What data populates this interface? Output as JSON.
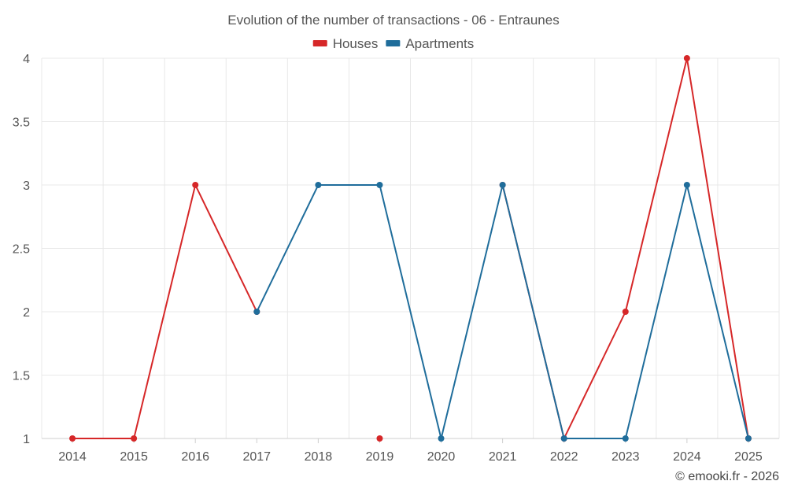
{
  "chart_data": {
    "type": "line",
    "title": "Evolution of the number of transactions - 06 - Entraunes",
    "xlabel": "",
    "ylabel": "",
    "categories": [
      "2014",
      "2015",
      "2016",
      "2017",
      "2018",
      "2019",
      "2020",
      "2021",
      "2022",
      "2023",
      "2024",
      "2025"
    ],
    "ylim": [
      1,
      4
    ],
    "yticks": [
      1,
      1.5,
      2,
      2.5,
      3,
      3.5,
      4
    ],
    "grid": true,
    "legend_position": "top-center",
    "series": [
      {
        "name": "Houses",
        "color": "#d62728",
        "values": [
          1,
          1,
          3,
          2,
          null,
          1,
          null,
          3,
          1,
          2,
          4,
          1
        ]
      },
      {
        "name": "Apartments",
        "color": "#1f6d9b",
        "values": [
          null,
          null,
          null,
          2,
          3,
          3,
          1,
          3,
          1,
          1,
          3,
          1
        ]
      }
    ]
  },
  "credit": "© emooki.fr - 2026"
}
